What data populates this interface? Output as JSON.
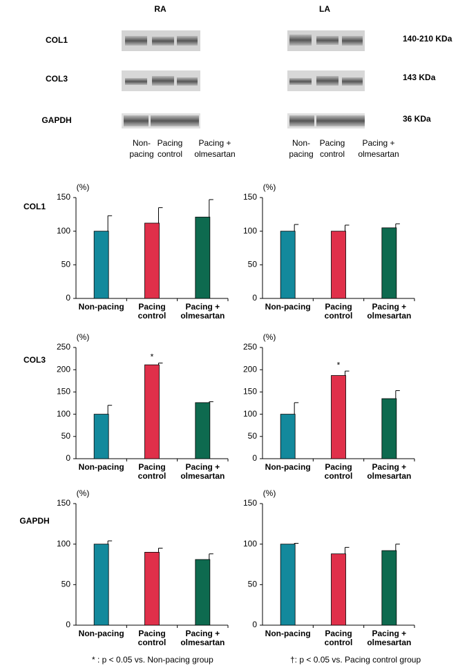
{
  "blot": {
    "columns": [
      "RA",
      "LA"
    ],
    "rows": [
      {
        "label": "COL1",
        "size": "140-210 KDa"
      },
      {
        "label": "COL3",
        "size": "143 KDa"
      },
      {
        "label": "GAPDH",
        "size": "36 KDa"
      }
    ],
    "lanes": [
      [
        [
          "Non-",
          "pacing"
        ],
        [
          "Pacing",
          "control"
        ],
        [
          "Pacing +",
          "olmesartan"
        ]
      ],
      [
        [
          "Non-",
          "pacing"
        ],
        [
          "Pacing",
          "control"
        ],
        [
          "Pacing +",
          "olmesartan"
        ]
      ]
    ]
  },
  "row_labels": [
    "COL1",
    "COL3",
    "GAPDH"
  ],
  "chart_data": [
    {
      "type": "bar",
      "ylabel": "(%)",
      "categories": [
        [
          "Non-pacing"
        ],
        [
          "Pacing",
          "control"
        ],
        [
          "Pacing +",
          "olmesartan"
        ]
      ],
      "colors": [
        "#13899c",
        "#e0304a",
        "#0e6a4f"
      ],
      "values": [
        100,
        112,
        121
      ],
      "errors": [
        23,
        23,
        26
      ],
      "ylim": [
        0,
        150
      ],
      "yticks": [
        0,
        50,
        100,
        150
      ]
    },
    {
      "type": "bar",
      "ylabel": "(%)",
      "categories": [
        [
          "Non-pacing"
        ],
        [
          "Pacing",
          "control"
        ],
        [
          "Pacing +",
          "olmesartan"
        ]
      ],
      "colors": [
        "#13899c",
        "#e0304a",
        "#0e6a4f"
      ],
      "values": [
        100,
        100,
        105
      ],
      "errors": [
        10,
        9,
        6
      ],
      "ylim": [
        0,
        150
      ],
      "yticks": [
        0,
        50,
        100,
        150
      ]
    },
    {
      "type": "bar",
      "ylabel": "(%)",
      "categories": [
        [
          "Non-pacing"
        ],
        [
          "Pacing",
          "control"
        ],
        [
          "Pacing +",
          "olmesartan"
        ]
      ],
      "colors": [
        "#13899c",
        "#e0304a",
        "#0e6a4f"
      ],
      "values": [
        100,
        211,
        126
      ],
      "errors": [
        20,
        4,
        2
      ],
      "markers": [
        null,
        "*",
        null
      ],
      "ylim": [
        0,
        250
      ],
      "yticks": [
        0,
        50,
        100,
        150,
        200,
        250
      ]
    },
    {
      "type": "bar",
      "ylabel": "(%)",
      "categories": [
        [
          "Non-pacing"
        ],
        [
          "Pacing",
          "control"
        ],
        [
          "Pacing +",
          "olmesartan"
        ]
      ],
      "colors": [
        "#13899c",
        "#e0304a",
        "#0e6a4f"
      ],
      "values": [
        100,
        187,
        135
      ],
      "errors": [
        26,
        10,
        18
      ],
      "markers": [
        null,
        "*",
        null
      ],
      "ylim": [
        0,
        250
      ],
      "yticks": [
        0,
        50,
        100,
        150,
        200,
        250
      ]
    },
    {
      "type": "bar",
      "ylabel": "(%)",
      "categories": [
        [
          "Non-pacing"
        ],
        [
          "Pacing",
          "control"
        ],
        [
          "Pacing +",
          "olmesartan"
        ]
      ],
      "colors": [
        "#13899c",
        "#e0304a",
        "#0e6a4f"
      ],
      "values": [
        100,
        90,
        81
      ],
      "errors": [
        4,
        5,
        7
      ],
      "ylim": [
        0,
        150
      ],
      "yticks": [
        0,
        50,
        100,
        150
      ]
    },
    {
      "type": "bar",
      "ylabel": "(%)",
      "categories": [
        [
          "Non-pacing"
        ],
        [
          "Pacing",
          "control"
        ],
        [
          "Pacing +",
          "olmesartan"
        ]
      ],
      "colors": [
        "#13899c",
        "#e0304a",
        "#0e6a4f"
      ],
      "values": [
        100,
        88,
        92
      ],
      "errors": [
        1,
        8,
        8
      ],
      "ylim": [
        0,
        150
      ],
      "yticks": [
        0,
        50,
        100,
        150
      ]
    }
  ],
  "footnotes": [
    "* : p < 0.05 vs. Non-pacing group",
    "†: p < 0.05 vs. Pacing control group"
  ]
}
